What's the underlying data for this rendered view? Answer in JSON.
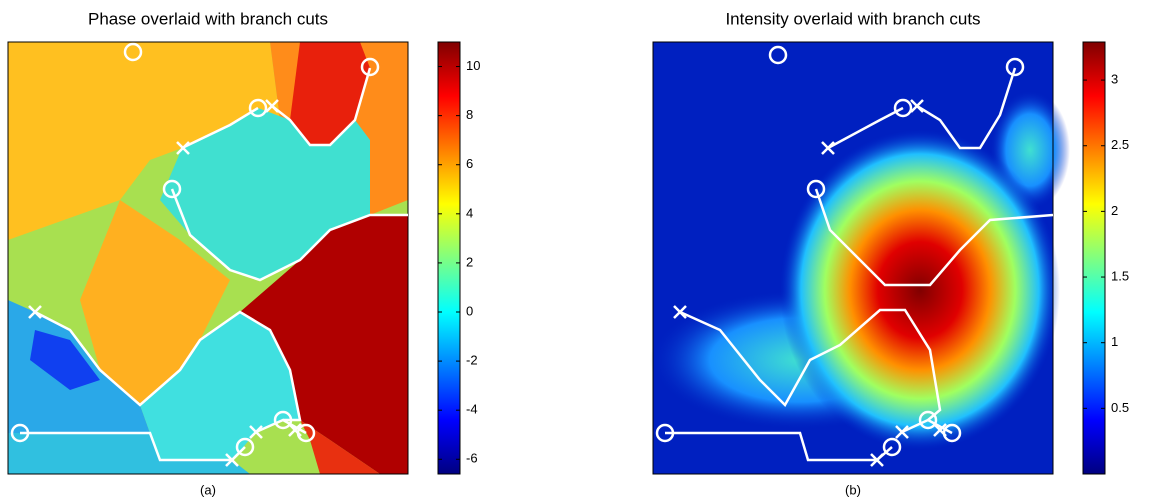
{
  "chart_data": [
    {
      "type": "heatmap",
      "title": "Phase overlaid with branch cuts",
      "caption": "(a)",
      "colormap": "jet",
      "clim": [
        -6.6,
        11.0
      ],
      "cticks": [
        -6,
        -4,
        -2,
        0,
        2,
        4,
        6,
        8,
        10
      ]
    },
    {
      "type": "heatmap",
      "title": "Intensity overlaid with branch cuts",
      "caption": "(b)",
      "colormap": "jet",
      "clim": [
        0.0,
        3.29
      ],
      "cticks": [
        0.5,
        1,
        1.5,
        2,
        2.5,
        3
      ]
    }
  ]
}
